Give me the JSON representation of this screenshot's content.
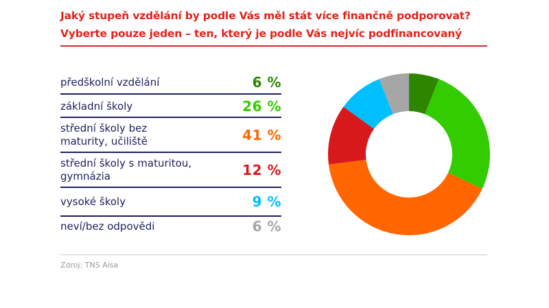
{
  "title_lines": [
    "Jaký stupeň vzdělání by podle Vás měl stát více finančně podporovat?",
    "Vyberte pouze jeden – ten, který je podle Vás nejvíc podfinancovaný"
  ],
  "source": "Zdroj: TNS Aisa",
  "chart_data": {
    "type": "pie",
    "donut": true,
    "start": "top, clockwise",
    "categories": [
      "předškolní vzdělání",
      "základní školy",
      "střední školy bez maturity, učiliště",
      "střední školy s maturitou, gymnázia",
      "vysoké školy",
      "neví/bez odpovědi"
    ],
    "values": [
      6,
      26,
      41,
      12,
      9,
      6
    ],
    "value_labels": [
      "6 %",
      "26 %",
      "41 %",
      "12 %",
      "9 %",
      "6 %"
    ],
    "colors": [
      "#2e8500",
      "#33cc00",
      "#ff6600",
      "#d7191c",
      "#00bfff",
      "#a6a6a6"
    ],
    "unit": "%"
  }
}
